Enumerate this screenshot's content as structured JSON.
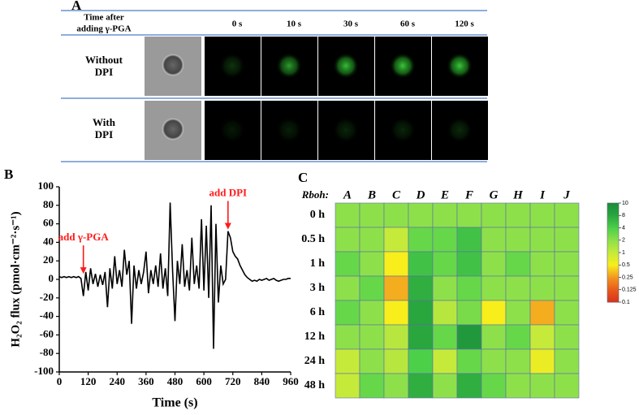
{
  "panels": {
    "a": {
      "label": "A",
      "header": [
        "Time after",
        "adding γ-PGA"
      ],
      "times": [
        "0 s",
        "10 s",
        "30 s",
        "60 s",
        "120 s"
      ],
      "rows": [
        [
          "Without",
          "DPI"
        ],
        [
          "With",
          "DPI"
        ]
      ]
    }
  },
  "chart_data": [
    {
      "type": "line",
      "label": "B",
      "xlabel": "Time (s)",
      "ylabel": "H₂O₂ flux (pmol·cm⁻²·s⁻¹)",
      "x": [
        0,
        10,
        20,
        30,
        40,
        50,
        60,
        70,
        80,
        90,
        100,
        110,
        120,
        130,
        140,
        150,
        160,
        170,
        180,
        190,
        200,
        210,
        220,
        230,
        240,
        250,
        260,
        270,
        280,
        290,
        300,
        310,
        320,
        330,
        340,
        350,
        360,
        370,
        380,
        390,
        400,
        410,
        420,
        430,
        440,
        450,
        460,
        470,
        480,
        490,
        500,
        510,
        520,
        530,
        540,
        550,
        560,
        570,
        580,
        590,
        600,
        610,
        620,
        630,
        640,
        650,
        660,
        670,
        680,
        690,
        700,
        710,
        720,
        730,
        740,
        750,
        760,
        770,
        780,
        790,
        800,
        810,
        820,
        830,
        840,
        850,
        860,
        870,
        880,
        890,
        900,
        910,
        920,
        930,
        940,
        950,
        960
      ],
      "values": [
        3,
        2,
        3,
        2,
        3,
        2,
        3,
        2,
        3,
        1,
        -18,
        8,
        -12,
        12,
        -5,
        6,
        -8,
        5,
        -6,
        8,
        -30,
        12,
        -10,
        25,
        -5,
        10,
        -8,
        32,
        5,
        20,
        -48,
        15,
        -10,
        10,
        -5,
        8,
        30,
        -15,
        10,
        -5,
        15,
        -8,
        28,
        -10,
        12,
        -18,
        83,
        10,
        -45,
        20,
        -5,
        38,
        -8,
        10,
        -12,
        45,
        -5,
        15,
        -10,
        65,
        -12,
        58,
        -20,
        80,
        -75,
        60,
        -25,
        15,
        -5,
        0,
        52,
        45,
        30,
        25,
        22,
        15,
        10,
        5,
        2,
        0,
        -2,
        -1,
        -2,
        0,
        -1,
        0,
        1,
        -1,
        0,
        1,
        -1,
        -2,
        -1,
        0,
        0,
        1,
        1
      ],
      "color": "#000000",
      "xlim": [
        0,
        960
      ],
      "xticks": [
        0,
        120,
        240,
        360,
        480,
        600,
        720,
        840,
        960
      ],
      "ylim": [
        -100,
        100
      ],
      "yticks": [
        -100,
        -80,
        -60,
        -40,
        -20,
        0,
        20,
        40,
        60,
        80,
        100
      ],
      "annotations": [
        {
          "text": "add γ-PGA",
          "x": 100,
          "y": 6
        },
        {
          "text": "add DPI",
          "x": 700,
          "y": 54
        }
      ],
      "annotation_color": "#ff1a1a"
    },
    {
      "type": "heatmap",
      "label": "C",
      "axis_label": "Rboh:",
      "columns": [
        "A",
        "B",
        "C",
        "D",
        "E",
        "F",
        "G",
        "H",
        "I",
        "J"
      ],
      "rows": [
        "0 h",
        "0.5 h",
        "1 h",
        "3 h",
        "6 h",
        "12 h",
        "24 h",
        "48 h"
      ],
      "values": [
        [
          2,
          2,
          2,
          2,
          2,
          2,
          2,
          2,
          2,
          2
        ],
        [
          2,
          2,
          1,
          3,
          3,
          5,
          2,
          2,
          2,
          2
        ],
        [
          3,
          2,
          0.5,
          5,
          3,
          5,
          2,
          3,
          2,
          2
        ],
        [
          2,
          3,
          0.3,
          7,
          2,
          3,
          2,
          2,
          2,
          2
        ],
        [
          3,
          2,
          0.5,
          8,
          1.2,
          2.5,
          0.5,
          2,
          0.3,
          2
        ],
        [
          2,
          2,
          1.2,
          8,
          3,
          9,
          2,
          3,
          1,
          2
        ],
        [
          1,
          2,
          1.2,
          4,
          1,
          3,
          2,
          2,
          0.6,
          2
        ],
        [
          1,
          3,
          2,
          7,
          2,
          7,
          3,
          2,
          2,
          2
        ]
      ],
      "log_scale": true,
      "colorbar": {
        "ticks": [
          0.1,
          0.125,
          0.25,
          0.5,
          1,
          2,
          4,
          8,
          10
        ],
        "colors": [
          "#d7301f",
          "#e85a1c",
          "#f29620",
          "#f7ee1c",
          "#c6ea3a",
          "#8ee04a",
          "#4cd04a",
          "#2aa63e",
          "#1a8c3a"
        ]
      }
    }
  ]
}
